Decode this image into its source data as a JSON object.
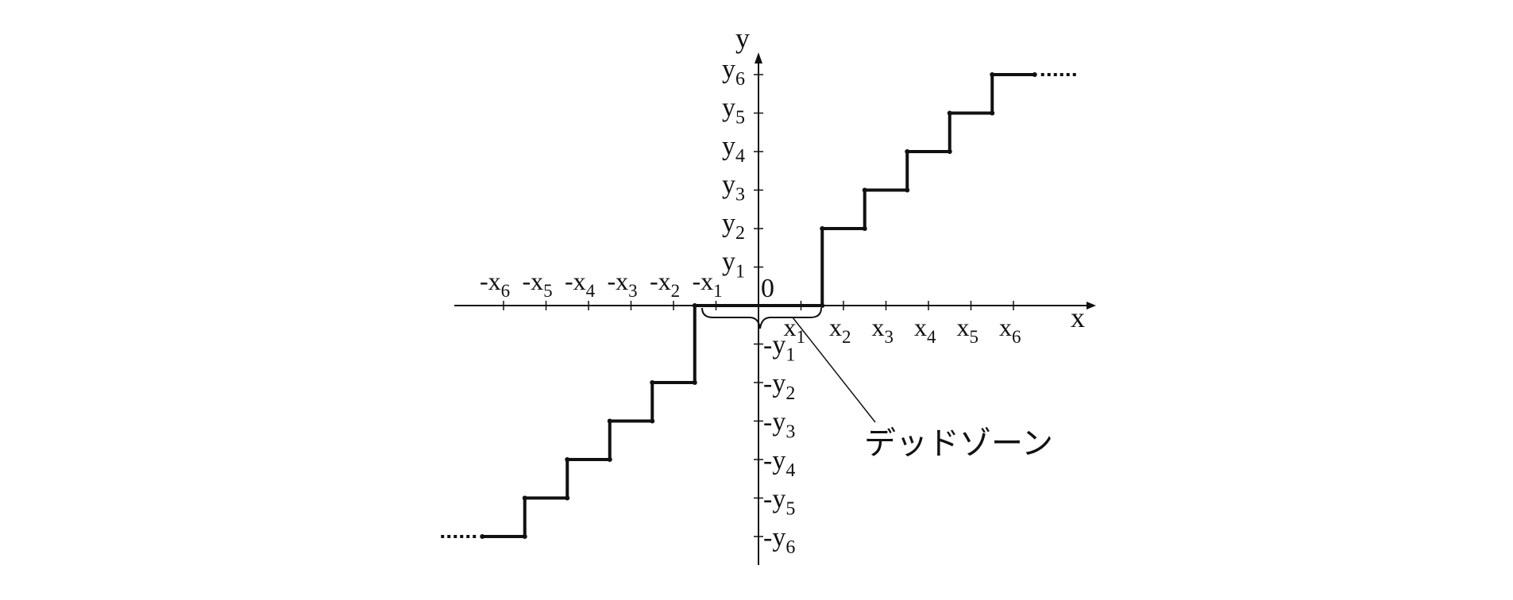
{
  "diagram": {
    "axis_labels": {
      "x": "x",
      "y": "y",
      "origin": "0"
    },
    "x_ticks_positive": [
      {
        "base": "x",
        "sub": "1"
      },
      {
        "base": "x",
        "sub": "2"
      },
      {
        "base": "x",
        "sub": "3"
      },
      {
        "base": "x",
        "sub": "4"
      },
      {
        "base": "x",
        "sub": "5"
      },
      {
        "base": "x",
        "sub": "6"
      }
    ],
    "x_ticks_negative": [
      {
        "base": "-x",
        "sub": "1"
      },
      {
        "base": "-x",
        "sub": "2"
      },
      {
        "base": "-x",
        "sub": "3"
      },
      {
        "base": "-x",
        "sub": "4"
      },
      {
        "base": "-x",
        "sub": "5"
      },
      {
        "base": "-x",
        "sub": "6"
      }
    ],
    "y_ticks_positive": [
      {
        "base": "y",
        "sub": "1"
      },
      {
        "base": "y",
        "sub": "2"
      },
      {
        "base": "y",
        "sub": "3"
      },
      {
        "base": "y",
        "sub": "4"
      },
      {
        "base": "y",
        "sub": "5"
      },
      {
        "base": "y",
        "sub": "6"
      }
    ],
    "y_ticks_negative": [
      {
        "base": "-y",
        "sub": "1"
      },
      {
        "base": "-y",
        "sub": "2"
      },
      {
        "base": "-y",
        "sub": "3"
      },
      {
        "base": "-y",
        "sub": "4"
      },
      {
        "base": "-y",
        "sub": "5"
      },
      {
        "base": "-y",
        "sub": "6"
      }
    ],
    "dead_zone_label": "デッドゾーン",
    "staircase": {
      "dead_zone_half_width": 1.5,
      "positive_steps": [
        {
          "x_start": 1.5,
          "x_end": 2.5,
          "level": 2
        },
        {
          "x_start": 2.5,
          "x_end": 3.5,
          "level": 3
        },
        {
          "x_start": 3.5,
          "x_end": 4.5,
          "level": 4
        },
        {
          "x_start": 4.5,
          "x_end": 5.5,
          "level": 5
        },
        {
          "x_start": 5.5,
          "x_end": 6.5,
          "level": 6
        }
      ],
      "continues_beyond": true
    },
    "colors": {
      "line": "#111111",
      "axis": "#111111"
    }
  }
}
